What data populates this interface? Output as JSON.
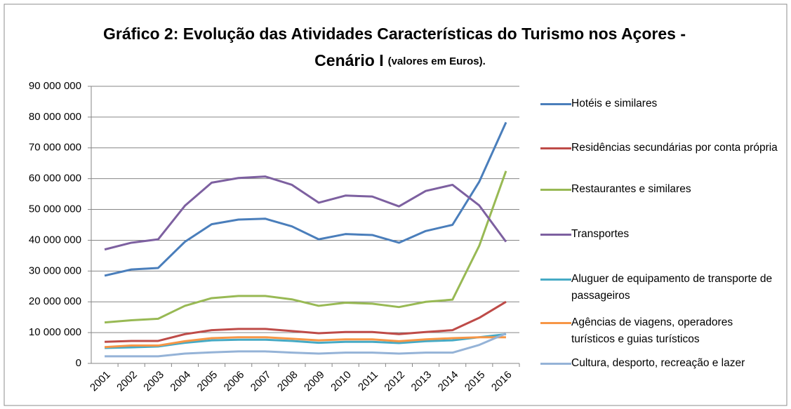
{
  "chart_data": {
    "type": "line",
    "title": [
      "Gráfico 2: Evolução das Atividades Características do Turismo nos Açores -",
      "Cenário I"
    ],
    "title_note": "(valores em Euros).",
    "categories": [
      "2001",
      "2002",
      "2003",
      "2004",
      "2005",
      "2006",
      "2007",
      "2008",
      "2009",
      "2010",
      "2011",
      "2012",
      "2013",
      "2014",
      "2015",
      "2016"
    ],
    "ylim": [
      0,
      90000000
    ],
    "yticks": [
      0,
      {
        "value": 10000000,
        "label": "10 000 000"
      },
      {
        "value": 20000000,
        "label": "20 000 000"
      },
      {
        "value": 30000000,
        "label": "30 000 000"
      },
      {
        "value": 40000000,
        "label": "40 000 000"
      },
      {
        "value": 50000000,
        "label": "50 000 000"
      },
      {
        "value": 60000000,
        "label": "60 000 000"
      },
      {
        "value": 70000000,
        "label": "70 000 000"
      },
      {
        "value": 80000000,
        "label": "80 000 000"
      },
      {
        "value": 90000000,
        "label": "90 000 000"
      }
    ],
    "grid": true,
    "legend": "right",
    "series": [
      {
        "name": "Hotéis e similares",
        "color": "#4a7ebb",
        "values": [
          28500000,
          30500000,
          31000000,
          39500000,
          45200000,
          46700000,
          47000000,
          44500000,
          40300000,
          42000000,
          41700000,
          39200000,
          43000000,
          45000000,
          59000000,
          78300000
        ]
      },
      {
        "name": "Residências secundárias por conta própria",
        "color": "#be4b48",
        "values": [
          7000000,
          7300000,
          7300000,
          9500000,
          10800000,
          11200000,
          11200000,
          10500000,
          9800000,
          10200000,
          10200000,
          9500000,
          10200000,
          10800000,
          14800000,
          20000000
        ]
      },
      {
        "name": "Restaurantes e similares",
        "color": "#98b954",
        "values": [
          13300000,
          14000000,
          14500000,
          18700000,
          21200000,
          21900000,
          21900000,
          20800000,
          18700000,
          19700000,
          19400000,
          18300000,
          20000000,
          20700000,
          38200000,
          62500000
        ]
      },
      {
        "name": "Transportes",
        "color": "#7d60a0",
        "values": [
          37000000,
          39200000,
          40300000,
          51200000,
          58700000,
          60200000,
          60700000,
          58000000,
          52200000,
          54500000,
          54200000,
          51000000,
          56000000,
          58000000,
          51300000,
          39500000
        ]
      },
      {
        "name": "Aluguer de equipamento de transporte de passageiros",
        "color": "#46aac5",
        "values": [
          5000000,
          5200000,
          5500000,
          6700000,
          7500000,
          7700000,
          7700000,
          7300000,
          6700000,
          7000000,
          7000000,
          6600000,
          7200000,
          7500000,
          8500000,
          9500000
        ]
      },
      {
        "name": "Agências de viagens, operadores turísticos e guias turísticos",
        "color": "#f79646",
        "values": [
          5300000,
          5800000,
          5800000,
          7200000,
          8200000,
          8500000,
          8500000,
          8000000,
          7500000,
          7800000,
          7800000,
          7200000,
          7800000,
          8200000,
          8500000,
          8500000
        ]
      },
      {
        "name": "Cultura, desporto, recreação e lazer",
        "color": "#95b3d7",
        "values": [
          2300000,
          2300000,
          2300000,
          3200000,
          3600000,
          3900000,
          3900000,
          3500000,
          3200000,
          3500000,
          3500000,
          3200000,
          3500000,
          3500000,
          6000000,
          9700000
        ]
      }
    ]
  }
}
